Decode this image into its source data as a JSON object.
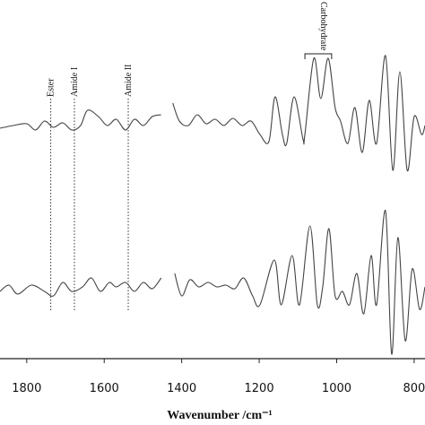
{
  "chart_data": {
    "type": "line",
    "xlabel": "Wavenumber /cm⁻¹",
    "xlim": [
      1869,
      772
    ],
    "ylim": [
      0,
      400
    ],
    "xticks": [
      1800,
      1600,
      1400,
      1200,
      1000,
      800
    ],
    "annotations": [
      {
        "text": "Ester",
        "x": 1738
      },
      {
        "text": "Amide I",
        "x": 1677
      },
      {
        "text": "Amide II",
        "x": 1538
      },
      {
        "text": "Carbohydrate",
        "x": [
          1082,
          1013
        ]
      }
    ],
    "series": [
      {
        "color": "#444444",
        "x": [
          1869,
          1835,
          1800,
          1777,
          1754,
          1731,
          1707,
          1684,
          1661,
          1643,
          1615,
          1592,
          1569,
          1545,
          1522,
          1499,
          1476,
          1453,
          1441,
          1423,
          1406,
          1383,
          1360,
          1337,
          1314,
          1291,
          1268,
          1244,
          1221,
          1198,
          1175,
          1159,
          1140,
          1129,
          1110,
          1087,
          1082,
          1059,
          1041,
          1022,
          1004,
          990,
          971,
          953,
          934,
          916,
          897,
          874,
          855,
          837,
          818,
          800,
          781,
          772
        ],
        "values": [
          257,
          260,
          262,
          255,
          265,
          258,
          263,
          255,
          260,
          277,
          270,
          260,
          267,
          255,
          267,
          260,
          270,
          272,
          null,
          285,
          265,
          260,
          272,
          262,
          267,
          260,
          268,
          260,
          265,
          250,
          242,
          292,
          250,
          240,
          292,
          245,
          250,
          335,
          290,
          335,
          280,
          265,
          240,
          280,
          230,
          288,
          240,
          338,
          210,
          320,
          210,
          270,
          250,
          260
        ]
      },
      {
        "color": "#444444",
        "x": [
          1869,
          1846,
          1823,
          1788,
          1754,
          1731,
          1707,
          1684,
          1656,
          1633,
          1610,
          1587,
          1569,
          1545,
          1522,
          1499,
          1476,
          1453,
          1430,
          1418,
          1400,
          1379,
          1356,
          1332,
          1309,
          1286,
          1263,
          1240,
          1217,
          1198,
          1161,
          1143,
          1115,
          1096,
          1069,
          1050,
          1036,
          1020,
          1004,
          985,
          967,
          948,
          930,
          911,
          897,
          874,
          858,
          842,
          823,
          805,
          786,
          772
        ],
        "values": [
          75,
          82,
          72,
          82,
          75,
          70,
          85,
          75,
          80,
          90,
          75,
          85,
          80,
          85,
          75,
          85,
          78,
          90,
          null,
          95,
          70,
          88,
          80,
          85,
          80,
          82,
          78,
          90,
          70,
          60,
          110,
          60,
          115,
          60,
          148,
          60,
          80,
          145,
          70,
          75,
          60,
          95,
          50,
          115,
          60,
          165,
          5,
          135,
          20,
          100,
          55,
          80
        ]
      }
    ]
  }
}
